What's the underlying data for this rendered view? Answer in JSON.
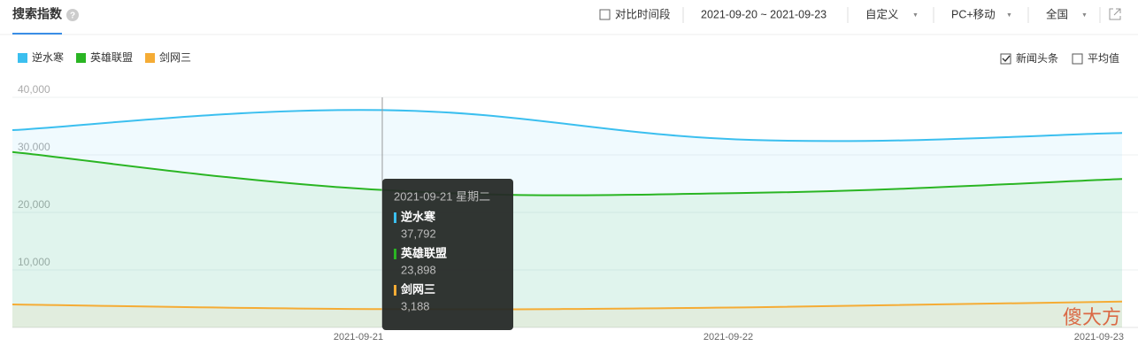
{
  "header": {
    "title": "搜索指数",
    "compare": "对比时间段",
    "date_range": "2021-09-20 ~ 2021-09-23",
    "custom": "自定义",
    "device": "PC+移动",
    "region": "全国",
    "news_option": "新闻头条",
    "average_option": "平均值"
  },
  "watermark": "傻大方",
  "chart_data": {
    "type": "line",
    "categories": [
      null,
      "2021-09-21",
      "2021-09-22",
      "2021-09-23"
    ],
    "series": [
      {
        "name": "逆水寒",
        "color": "#3bbfef",
        "values": [
          34300,
          37792,
          32600,
          33800
        ],
        "value_labels": [
          null,
          "37,792",
          null,
          null
        ]
      },
      {
        "name": "英雄联盟",
        "color": "#2ab523",
        "values": [
          30500,
          23898,
          23400,
          25800
        ],
        "value_labels": [
          null,
          "23,898",
          null,
          null
        ]
      },
      {
        "name": "剑网三",
        "color": "#f5ac35",
        "values": [
          4000,
          3188,
          3500,
          4500
        ],
        "value_labels": [
          null,
          "3,188",
          null,
          null
        ]
      }
    ],
    "ylim": [
      0,
      40000
    ],
    "yticks": [
      {
        "value": 10000,
        "label": "10,000"
      },
      {
        "value": 20000,
        "label": "20,000"
      },
      {
        "value": 30000,
        "label": "30,000"
      },
      {
        "value": 40000,
        "label": "40,000"
      }
    ],
    "grid": true,
    "area": true,
    "tooltip": {
      "title": "2021-09-21 星期二"
    }
  }
}
